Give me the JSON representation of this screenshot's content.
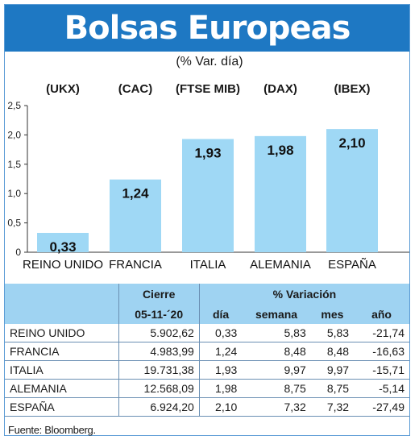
{
  "header": {
    "title": "Bolsas Europeas",
    "subtitle": "(% Var. día)"
  },
  "colors": {
    "title_bg": "#1e78c3",
    "bar": "#9fd8f5",
    "table_header": "#9fd3f2"
  },
  "chart_data": {
    "type": "bar",
    "title": "Bolsas Europeas",
    "subtitle": "(% Var. día)",
    "index_labels": [
      "(UKX)",
      "(CAC)",
      "(FTSE MIB)",
      "(DAX)",
      "(IBEX)"
    ],
    "categories": [
      "REINO UNIDO",
      "FRANCIA",
      "ITALIA",
      "ALEMANIA",
      "ESPAÑA"
    ],
    "values": [
      0.33,
      1.24,
      1.93,
      1.98,
      2.1
    ],
    "value_labels": [
      "0,33",
      "1,24",
      "1,93",
      "1,98",
      "2,10"
    ],
    "yticks": [
      "0",
      "0,5",
      "1,0",
      "1,5",
      "2,0",
      "2,5"
    ],
    "ytick_values": [
      0,
      0.5,
      1.0,
      1.5,
      2.0,
      2.5
    ],
    "ylim": [
      0,
      2.5
    ],
    "grid": false
  },
  "table": {
    "group_headers": {
      "cierre": "Cierre",
      "variacion": "% Variación"
    },
    "columns": {
      "date": "05-11-´20",
      "dia": "día",
      "semana": "semana",
      "mes": "mes",
      "anio": "año"
    },
    "rows": [
      {
        "country": "REINO UNIDO",
        "cierre": "5.902,62",
        "dia": "0,33",
        "semana": "5,83",
        "mes": "5,83",
        "anio": "-21,74"
      },
      {
        "country": "FRANCIA",
        "cierre": "4.983,99",
        "dia": "1,24",
        "semana": "8,48",
        "mes": "8,48",
        "anio": "-16,63"
      },
      {
        "country": "ITALIA",
        "cierre": "19.731,38",
        "dia": "1,93",
        "semana": "9,97",
        "mes": "9,97",
        "anio": "-15,71"
      },
      {
        "country": "ALEMANIA",
        "cierre": "12.568,09",
        "dia": "1,98",
        "semana": "8,75",
        "mes": "8,75",
        "anio": "-5,14"
      },
      {
        "country": "ESPAÑA",
        "cierre": "6.924,20",
        "dia": "2,10",
        "semana": "7,32",
        "mes": "7,32",
        "anio": "-27,49"
      }
    ]
  },
  "source": "Fuente: Bloomberg."
}
